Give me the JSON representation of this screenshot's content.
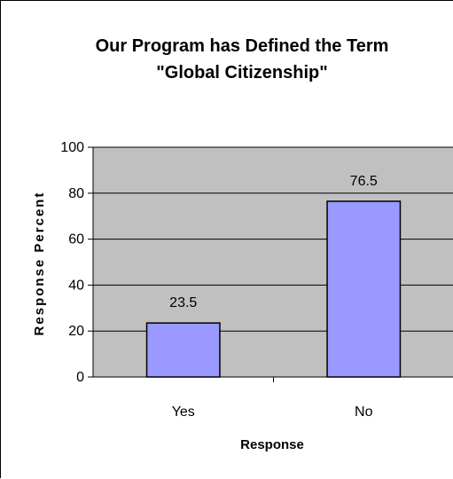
{
  "chart_data": {
    "type": "bar",
    "title_lines": [
      "Our Program has Defined the Term",
      "\"Global Citizenship\""
    ],
    "categories": [
      "Yes",
      "No"
    ],
    "values": [
      23.5,
      76.5
    ],
    "data_labels": [
      "23.5",
      "76.5"
    ],
    "xlabel": "Response",
    "ylabel": "Response Percent",
    "ylim": [
      0,
      100
    ],
    "yticks": [
      0,
      20,
      40,
      60,
      80,
      100
    ],
    "grid": true,
    "legend": "none",
    "colors": {
      "plot_background": "#c0c0c0",
      "bar_fill": "#9999ff",
      "bar_stroke": "#000000",
      "gridline": "#000000"
    }
  }
}
